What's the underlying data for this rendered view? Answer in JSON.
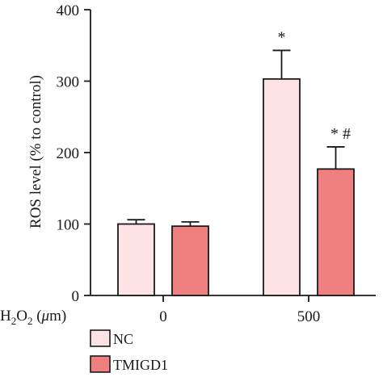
{
  "chart_data": {
    "type": "bar",
    "ylabel": "ROS level (% to control)",
    "xlabel": "H2O2 (μm)",
    "xlabel_parts": {
      "base": "H",
      "sub1": "2",
      "mid": "O",
      "sub2": "2",
      "unit_open": " (",
      "unit_mu": "μ",
      "unit_rest": "m)"
    },
    "categories": [
      "0",
      "500"
    ],
    "ylim": [
      0,
      400
    ],
    "yticks": [
      "0",
      "100",
      "200",
      "300",
      "400"
    ],
    "series": [
      {
        "name": "NC",
        "values": [
          100,
          303
        ],
        "errors": [
          6,
          40
        ],
        "color": "#fde3e6"
      },
      {
        "name": "TMIGD1",
        "values": [
          97,
          177
        ],
        "errors": [
          6,
          31
        ],
        "color": "#f08080"
      }
    ],
    "annotations": [
      {
        "category": "500",
        "series": "NC",
        "text": "*"
      },
      {
        "category": "500",
        "series": "TMIGD1",
        "text": "* #"
      }
    ],
    "legend": "bottom-left"
  }
}
